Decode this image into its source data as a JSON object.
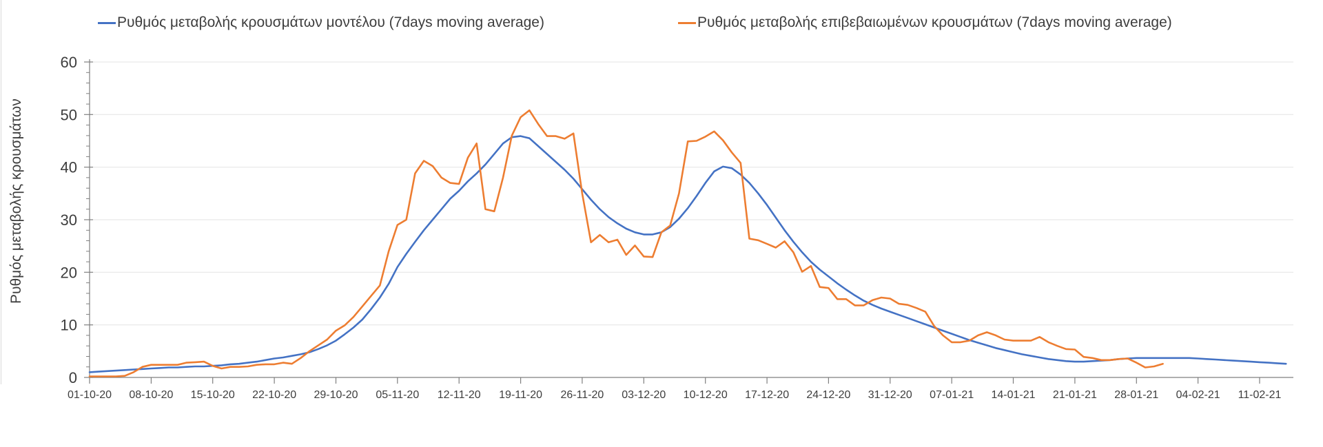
{
  "chart_data": {
    "type": "line",
    "title": "",
    "xlabel": "",
    "ylabel": "Ρυθμός μεταβολής κρουσμάτων",
    "ylim": [
      0,
      60
    ],
    "y_major_ticks": [
      0,
      10,
      20,
      30,
      40,
      50,
      60
    ],
    "y_minor_step": 2,
    "grid": "horizontal-light",
    "legend_position": "top",
    "x_start_date": "01-10-20",
    "x_tick_every_days": 7,
    "x_tick_labels": [
      "01-10-20",
      "08-10-20",
      "15-10-20",
      "22-10-20",
      "29-10-20",
      "05-11-20",
      "12-11-20",
      "19-11-20",
      "26-11-20",
      "03-12-20",
      "10-12-20",
      "17-12-20",
      "24-12-20",
      "31-12-20",
      "07-01-21",
      "14-01-21",
      "21-01-21",
      "28-01-21",
      "04-02-21",
      "11-02-21"
    ],
    "style": {
      "axis_color": "#7f7f7f",
      "grid_color": "#e3e3e3",
      "label_color": "#3d3d3d"
    },
    "series": [
      {
        "name": "Ρυθμός μεταβολής κρουσμάτων μοντέλου (7days moving average)",
        "data_name": "series-line-model",
        "color": "#4472C4",
        "values": [
          1.0,
          1.1,
          1.2,
          1.3,
          1.4,
          1.5,
          1.6,
          1.7,
          1.8,
          1.9,
          1.9,
          2.0,
          2.1,
          2.1,
          2.2,
          2.3,
          2.5,
          2.6,
          2.8,
          3.0,
          3.3,
          3.6,
          3.8,
          4.1,
          4.4,
          4.8,
          5.4,
          6.1,
          7.0,
          8.2,
          9.5,
          11.0,
          13.0,
          15.2,
          17.8,
          21.0,
          23.5,
          25.8,
          28.0,
          30.0,
          32.0,
          34.0,
          35.5,
          37.3,
          38.8,
          40.5,
          42.5,
          44.5,
          45.7,
          45.9,
          45.5,
          44.0,
          42.5,
          41.0,
          39.5,
          37.8,
          35.8,
          33.8,
          32.0,
          30.5,
          29.3,
          28.3,
          27.6,
          27.2,
          27.2,
          27.6,
          28.6,
          30.2,
          32.2,
          34.5,
          37.0,
          39.2,
          40.1,
          39.8,
          38.6,
          37.0,
          35.0,
          32.8,
          30.4,
          28.0,
          25.8,
          23.8,
          22.0,
          20.5,
          19.2,
          17.9,
          16.7,
          15.6,
          14.6,
          13.8,
          13.1,
          12.5,
          11.9,
          11.3,
          10.7,
          10.1,
          9.5,
          8.9,
          8.3,
          7.7,
          7.1,
          6.6,
          6.1,
          5.6,
          5.2,
          4.8,
          4.4,
          4.1,
          3.8,
          3.5,
          3.3,
          3.1,
          3.0,
          3.0,
          3.1,
          3.2,
          3.3,
          3.5,
          3.6,
          3.7,
          3.7,
          3.7,
          3.7,
          3.7,
          3.7,
          3.7,
          3.6,
          3.5,
          3.4,
          3.3,
          3.2,
          3.1,
          3.0,
          2.9,
          2.8,
          2.7,
          2.6
        ]
      },
      {
        "name": "Ρυθμός μεταβολής επιβεβαιωμένων κρουσμάτων (7days moving average)",
        "data_name": "series-line-confirmed",
        "color": "#ED7D31",
        "values": [
          0.2,
          0.2,
          0.2,
          0.2,
          0.3,
          1.0,
          2.0,
          2.4,
          2.4,
          2.4,
          2.4,
          2.8,
          2.9,
          3.0,
          2.2,
          1.7,
          2.0,
          2.0,
          2.1,
          2.4,
          2.5,
          2.5,
          2.8,
          2.6,
          3.7,
          5.0,
          6.1,
          7.2,
          8.9,
          9.9,
          11.5,
          13.5,
          15.5,
          17.5,
          24.0,
          29.0,
          30.0,
          38.8,
          41.2,
          40.2,
          38.0,
          37.0,
          36.8,
          41.8,
          44.5,
          32.0,
          31.6,
          38.0,
          46.0,
          49.5,
          50.8,
          48.2,
          45.9,
          45.9,
          45.4,
          46.4,
          35.0,
          25.7,
          27.1,
          25.7,
          26.2,
          23.3,
          25.1,
          23.0,
          22.9,
          27.6,
          28.9,
          35.0,
          44.9,
          45.0,
          45.8,
          46.8,
          45.1,
          42.8,
          40.8,
          26.4,
          26.1,
          25.4,
          24.7,
          25.9,
          23.8,
          20.1,
          21.2,
          17.2,
          17.0,
          14.9,
          14.9,
          13.7,
          13.7,
          14.7,
          15.2,
          15.0,
          14.0,
          13.8,
          13.2,
          12.5,
          9.8,
          8.0,
          6.7,
          6.7,
          7.0,
          8.0,
          8.6,
          8.0,
          7.2,
          7.0,
          7.0,
          7.0,
          7.7,
          6.7,
          6.0,
          5.4,
          5.3,
          3.9,
          3.7,
          3.3,
          3.3,
          3.5,
          3.6,
          2.8,
          1.9,
          2.1,
          2.6
        ]
      }
    ]
  },
  "legend": {
    "item1_label": "Ρυθμός μεταβολής κρουσμάτων μοντέλου (7days moving average)",
    "item2_label": "Ρυθμός μεταβολής επιβεβαιωμένων κρουσμάτων (7days moving average)"
  },
  "y_axis_title": "Ρυθμός μεταβολής κρουσμάτων"
}
